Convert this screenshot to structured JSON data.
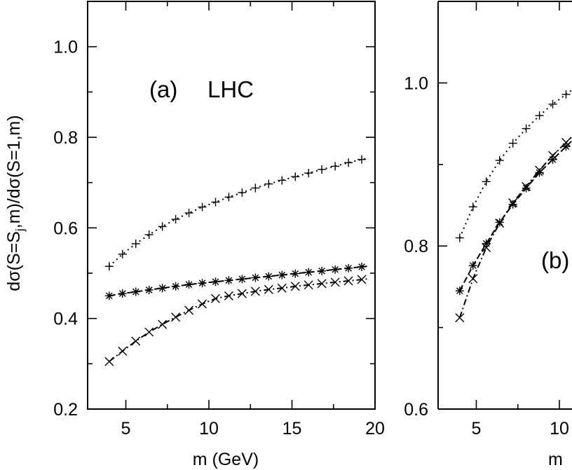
{
  "chart_data": [
    {
      "type": "scatter",
      "panel_label": "(a)",
      "title": "LHC",
      "xlabel": "m (GeV)",
      "ylabel": "dσ(S=S",
      "ylabel_sub": "j",
      "ylabel_rest": ",m)/dσ(S=1,m)",
      "xlim": [
        2.7,
        20
      ],
      "ylim": [
        0.2,
        1.1
      ],
      "xticks": [
        5,
        10,
        15,
        20
      ],
      "xtick_labels": [
        "5",
        "10",
        "15",
        "20"
      ],
      "yticks": [
        0.2,
        0.4,
        0.6,
        0.8,
        1.0
      ],
      "ytick_labels": [
        "0.2",
        "0.4",
        "0.6",
        "0.8",
        "1.0"
      ],
      "series": [
        {
          "name": "plus",
          "marker": "plus",
          "line": "dotted",
          "x": [
            4.0,
            4.8,
            5.6,
            6.4,
            7.2,
            8.0,
            8.8,
            9.6,
            10.4,
            11.2,
            12.0,
            12.8,
            13.6,
            14.4,
            15.2,
            16.0,
            16.8,
            17.6,
            18.4,
            19.2
          ],
          "values": [
            0.515,
            0.542,
            0.565,
            0.585,
            0.603,
            0.619,
            0.633,
            0.646,
            0.657,
            0.668,
            0.678,
            0.688,
            0.697,
            0.705,
            0.713,
            0.721,
            0.729,
            0.736,
            0.744,
            0.751
          ]
        },
        {
          "name": "star",
          "marker": "asterisk",
          "line": "dashed",
          "x": [
            4.0,
            4.8,
            5.6,
            6.4,
            7.2,
            8.0,
            8.8,
            9.6,
            10.4,
            11.2,
            12.0,
            12.8,
            13.6,
            14.4,
            15.2,
            16.0,
            16.8,
            17.6,
            18.4,
            19.2
          ],
          "values": [
            0.45,
            0.455,
            0.459,
            0.463,
            0.467,
            0.471,
            0.475,
            0.478,
            0.481,
            0.484,
            0.487,
            0.49,
            0.493,
            0.496,
            0.499,
            0.502,
            0.505,
            0.508,
            0.511,
            0.514
          ]
        },
        {
          "name": "cross",
          "marker": "cross",
          "line": "dashdot",
          "x": [
            4.0,
            4.8,
            5.6,
            6.4,
            7.2,
            8.0,
            8.8,
            9.6,
            10.4,
            11.2,
            12.0,
            12.8,
            13.6,
            14.4,
            15.2,
            16.0,
            16.8,
            17.6,
            18.4,
            19.2
          ],
          "values": [
            0.305,
            0.328,
            0.35,
            0.37,
            0.387,
            0.403,
            0.418,
            0.432,
            0.444,
            0.45,
            0.455,
            0.46,
            0.464,
            0.467,
            0.471,
            0.474,
            0.477,
            0.48,
            0.483,
            0.486
          ]
        }
      ]
    },
    {
      "type": "scatter",
      "panel_label": "(b)",
      "xlabel": "m",
      "xlim": [
        2.7,
        20
      ],
      "ylim": [
        0.6,
        1.1
      ],
      "xticks": [
        5,
        10
      ],
      "xtick_labels": [
        "5",
        "10"
      ],
      "yticks": [
        0.6,
        0.8,
        1.0
      ],
      "ytick_labels": [
        "0.6",
        "0.8",
        "1.0"
      ],
      "series": [
        {
          "name": "plus",
          "marker": "plus",
          "line": "dotted",
          "x": [
            4.0,
            4.8,
            5.6,
            6.4,
            7.2,
            8.0,
            8.8,
            9.6,
            10.4
          ],
          "values": [
            0.81,
            0.848,
            0.879,
            0.905,
            0.926,
            0.944,
            0.96,
            0.974,
            0.986
          ]
        },
        {
          "name": "star",
          "marker": "asterisk",
          "line": "dashed",
          "x": [
            4.0,
            4.8,
            5.6,
            6.4,
            7.2,
            8.0,
            8.8,
            9.6,
            10.4
          ],
          "values": [
            0.745,
            0.776,
            0.803,
            0.829,
            0.851,
            0.871,
            0.89,
            0.906,
            0.922
          ]
        },
        {
          "name": "cross",
          "marker": "cross",
          "line": "dashdot",
          "x": [
            4.0,
            4.8,
            5.6,
            6.4,
            7.2,
            8.0,
            8.8,
            9.6,
            10.4
          ],
          "values": [
            0.712,
            0.76,
            0.798,
            0.828,
            0.853,
            0.873,
            0.893,
            0.911,
            0.927
          ]
        }
      ]
    }
  ]
}
